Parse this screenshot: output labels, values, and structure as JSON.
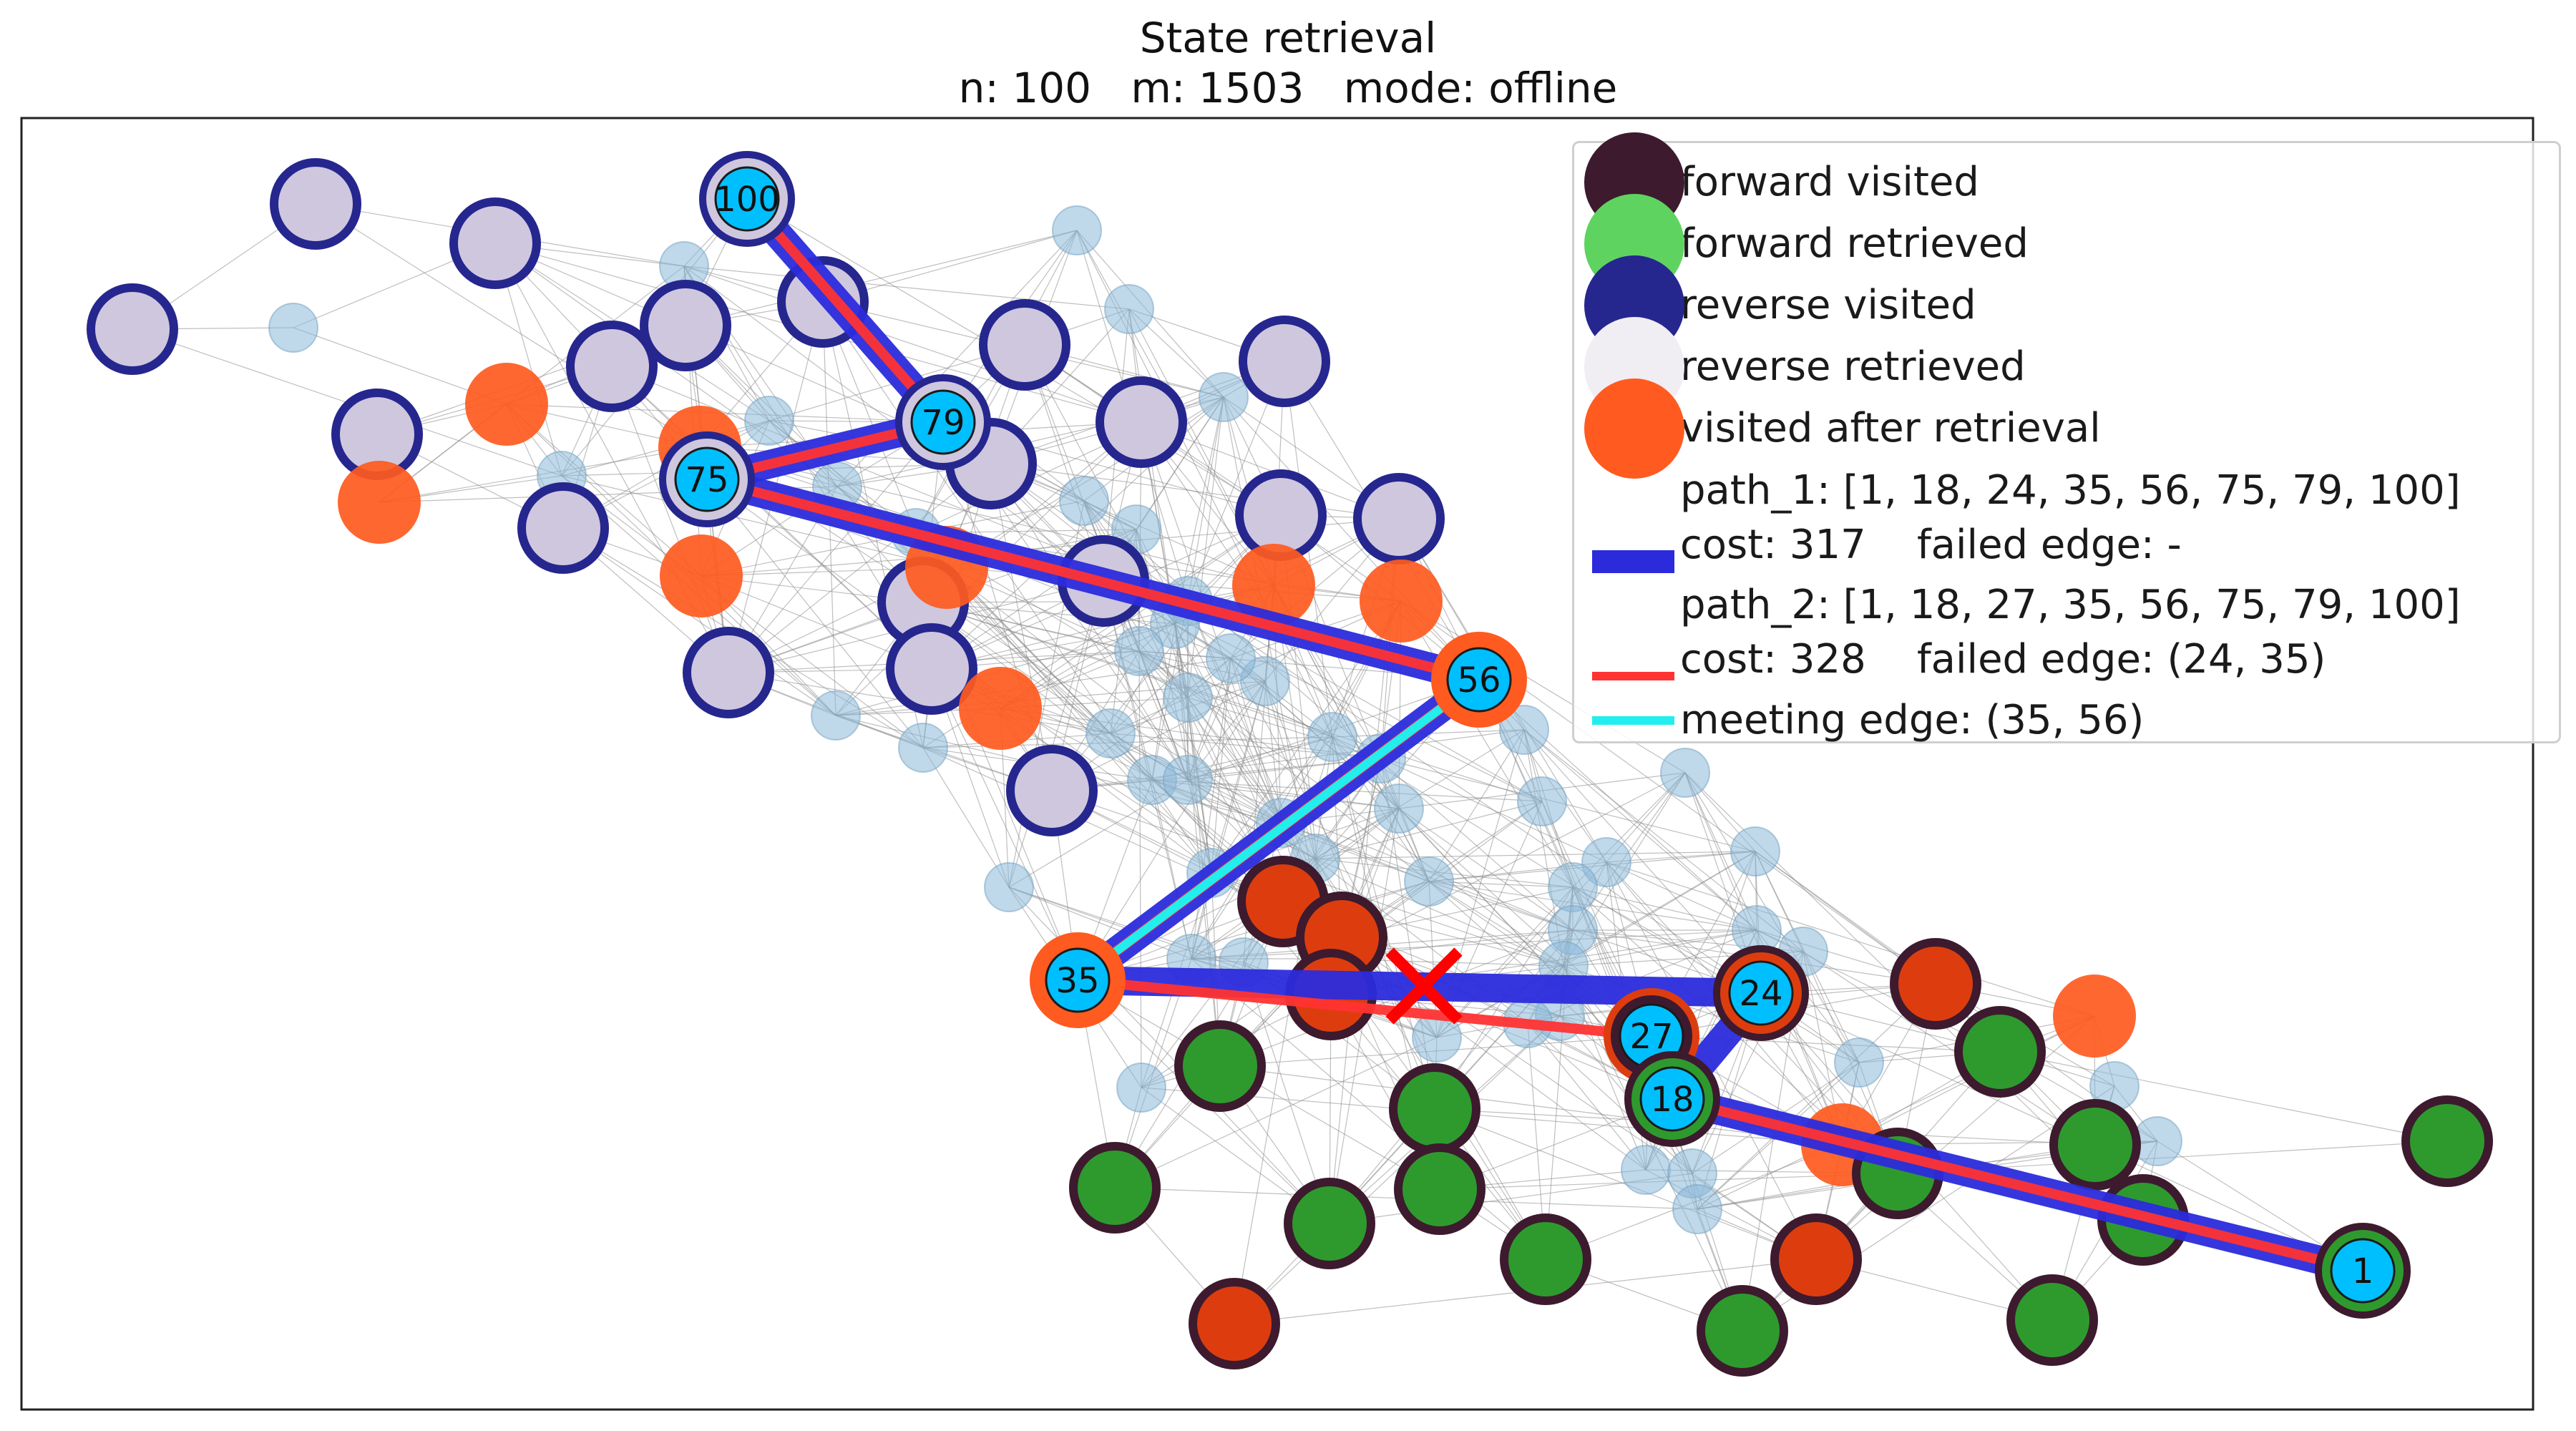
{
  "title": {
    "line1": "State retrieval",
    "line2": "n: 100   m: 1503   mode: offline"
  },
  "colors": {
    "forward_visited": "#3d1a2e",
    "forward_retrieved": "#2e9a2e",
    "reverse_visited": "#26268f",
    "reverse_retrieved": "#cfc7de",
    "visited_after_retrieval": "#ff5a1f",
    "path_1": "#2b2bdc",
    "path_2": "#ff3333",
    "meeting_edge": "#22eeee",
    "labeled_node": "#00bfff",
    "unvisited_node": "#8ab8d8",
    "failed_edge_marker": "#ff0000"
  },
  "legend": [
    {
      "key": "forward_visited",
      "label": "forward visited"
    },
    {
      "key": "forward_retrieved",
      "label": "forward retrieved"
    },
    {
      "key": "reverse_visited",
      "label": "reverse visited"
    },
    {
      "key": "reverse_retrieved",
      "label": "reverse retrieved"
    },
    {
      "key": "visited_after_retrieval",
      "label": "visited after retrieval"
    },
    {
      "key": "path_1",
      "label": "path_1: [1, 18, 24, 35, 56, 75, 79, 100]\ncost: 317    failed edge: -"
    },
    {
      "key": "path_2",
      "label": "path_2: [1, 18, 27, 35, 56, 75, 79, 100]\ncost: 328    failed edge: (24, 35)"
    },
    {
      "key": "meeting_edge",
      "label": "meeting edge: (35, 56)"
    }
  ],
  "graph": {
    "n": 100,
    "m": 1503,
    "labeled_nodes": [
      "100",
      "79",
      "75",
      "56",
      "35",
      "24",
      "27",
      "18",
      "1"
    ],
    "path_1": [
      "1",
      "18",
      "24",
      "35",
      "56",
      "75",
      "79",
      "100"
    ],
    "path_2": [
      "1",
      "18",
      "27",
      "35",
      "56",
      "75",
      "79",
      "100"
    ],
    "meeting_edge": [
      "35",
      "56"
    ],
    "failed_edge": [
      "24",
      "35"
    ]
  }
}
